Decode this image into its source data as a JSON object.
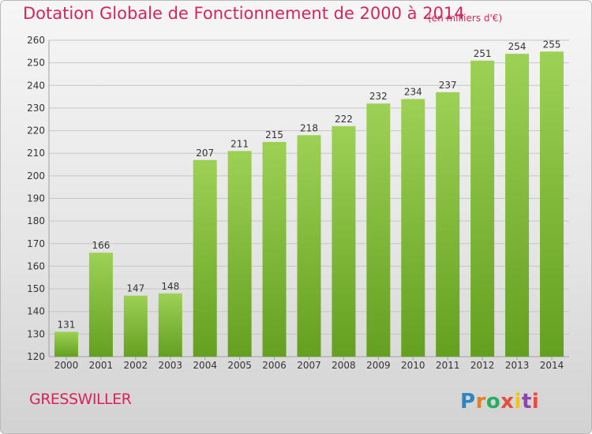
{
  "title": "Dotation Globale de Fonctionnement de 2000 à 2014",
  "subtitle": "(en milliers d'€)",
  "commune": "GRESSWILLER",
  "logo": {
    "text": "Proxiti",
    "letter_colors": [
      "#2e86c1",
      "#e67e22",
      "#27ae60",
      "#e74c3c",
      "#f1c40f",
      "#8e44ad",
      "#e74c3c"
    ]
  },
  "colors": {
    "title": "#d9245a",
    "bar_light": "#9dd155",
    "bar_dark": "#64a020",
    "grid": "#c6c6c6"
  },
  "chart_data": {
    "type": "bar",
    "title": "Dotation Globale de Fonctionnement de 2000 à 2014",
    "subtitle": "(en milliers d'€)",
    "xlabel": "",
    "ylabel": "",
    "categories": [
      "2000",
      "2001",
      "2002",
      "2003",
      "2004",
      "2005",
      "2006",
      "2007",
      "2008",
      "2009",
      "2010",
      "2011",
      "2012",
      "2013",
      "2014"
    ],
    "values": [
      131,
      166,
      147,
      148,
      207,
      211,
      215,
      218,
      222,
      232,
      234,
      237,
      251,
      254,
      255
    ],
    "ylim": [
      120,
      260
    ],
    "yticks": [
      120,
      130,
      140,
      150,
      160,
      170,
      180,
      190,
      200,
      210,
      220,
      230,
      240,
      250,
      260
    ],
    "grid": true,
    "data_labels": true
  }
}
